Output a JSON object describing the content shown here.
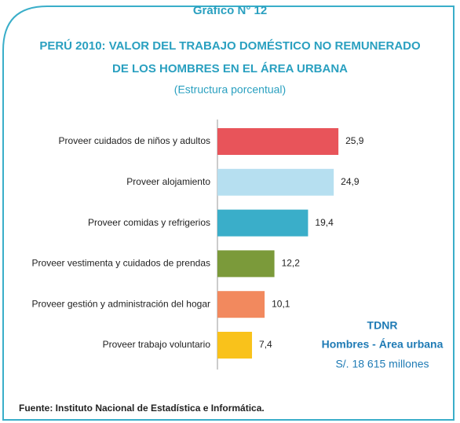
{
  "chart_data": {
    "type": "bar",
    "orientation": "horizontal",
    "title": "Gráfico N° 12",
    "subtitle": [
      "PERÚ 2010: VALOR DEL TRABAJO DOMÉSTICO NO REMUNERADO",
      "DE LOS HOMBRES EN EL ÁREA URBANA"
    ],
    "unit_note": "(Estructura porcentual)",
    "categories": [
      "Proveer cuidados de niños y adultos",
      "Proveer alojamiento",
      "Proveer comidas y refrigerios",
      "Proveer vestimenta y cuidados de prendas",
      "Proveer gestión y administración del hogar",
      "Proveer trabajo voluntario"
    ],
    "values": [
      25.9,
      24.9,
      19.4,
      12.2,
      10.1,
      7.4
    ],
    "value_labels": [
      "25,9",
      "24,9",
      "19,4",
      "12,2",
      "10,1",
      "7,4"
    ],
    "colors": [
      "#e8545a",
      "#b6dff0",
      "#3aaec9",
      "#7b9a3a",
      "#f2895e",
      "#f9c21b"
    ],
    "annotation": [
      "TDNR",
      "Hombres - Área urbana",
      "S/. 18 615 millones"
    ],
    "source": "Fuente: Instituto Nacional de Estadística e Informática."
  }
}
